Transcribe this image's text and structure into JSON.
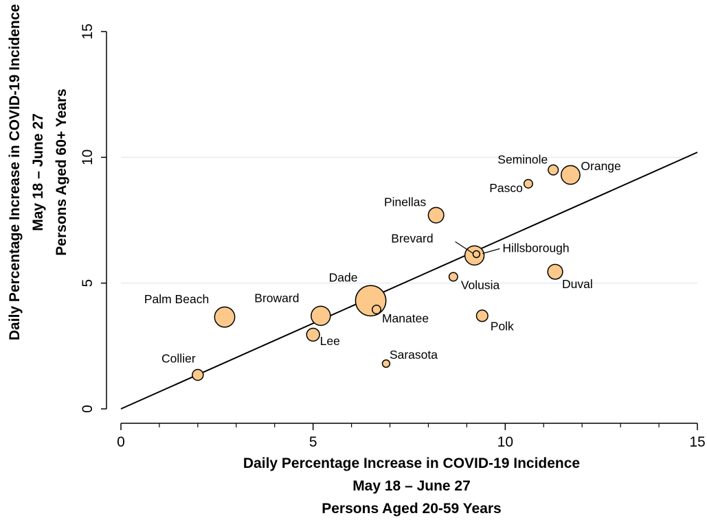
{
  "chart_data": {
    "type": "scatter",
    "title": "",
    "xlabel": [
      "Daily Percentage Increase in COVID-19 Incidence",
      "May 18 – June 27",
      "Persons Aged 20-59 Years"
    ],
    "ylabel": [
      "Daily Percentage Increase in COVID-19 Incidence",
      "May 18 – June 27",
      "Persons Aged 60+ Years"
    ],
    "xlim": [
      0,
      15
    ],
    "ylim": [
      0,
      15
    ],
    "x_ticks": [
      {
        "value": 0,
        "label": "0"
      },
      {
        "value": 5,
        "label": "5"
      },
      {
        "value": 10,
        "label": "10"
      },
      {
        "value": 15,
        "label": "15"
      }
    ],
    "y_ticks": [
      {
        "value": 0,
        "label": "0"
      },
      {
        "value": 5,
        "label": "5"
      },
      {
        "value": 10,
        "label": "10"
      },
      {
        "value": 15,
        "label": "15"
      }
    ],
    "x_minor_step": 1,
    "y_gridlines": [
      5,
      10
    ],
    "reference_line": {
      "from": [
        0,
        0
      ],
      "to": [
        15,
        10.2
      ]
    },
    "marker_color": "#fcc98b",
    "marker_edge_color": "#000000",
    "marker_size_note": "marker area proportional to county population",
    "points": [
      {
        "label": "Collier",
        "x": 2.0,
        "y": 1.35,
        "size": 1.3
      },
      {
        "label": "Palm Beach",
        "x": 2.7,
        "y": 3.65,
        "size": 4.4
      },
      {
        "label": "Lee",
        "x": 5.0,
        "y": 2.95,
        "size": 1.8
      },
      {
        "label": "Broward",
        "x": 5.2,
        "y": 3.7,
        "size": 4.0
      },
      {
        "label": "Dade",
        "x": 6.5,
        "y": 4.3,
        "size": 10.0
      },
      {
        "label": "Manatee",
        "x": 6.65,
        "y": 3.95,
        "size": 0.8
      },
      {
        "label": "Sarasota",
        "x": 6.9,
        "y": 1.8,
        "size": 0.6
      },
      {
        "label": "Pinellas",
        "x": 8.2,
        "y": 7.7,
        "size": 2.6
      },
      {
        "label": "Volusia",
        "x": 8.65,
        "y": 5.25,
        "size": 0.8
      },
      {
        "label": "Brevard",
        "x": 9.2,
        "y": 6.1,
        "size": 4.0
      },
      {
        "label": "Hillsborough",
        "x": 9.25,
        "y": 6.15,
        "size": 0.5
      },
      {
        "label": "Polk",
        "x": 9.4,
        "y": 3.7,
        "size": 1.4
      },
      {
        "label": "Pasco",
        "x": 10.6,
        "y": 8.95,
        "size": 0.8
      },
      {
        "label": "Seminole",
        "x": 11.25,
        "y": 9.5,
        "size": 1.1
      },
      {
        "label": "Duval",
        "x": 11.3,
        "y": 5.45,
        "size": 2.4
      },
      {
        "label": "Orange",
        "x": 11.7,
        "y": 9.3,
        "size": 3.8
      }
    ]
  }
}
